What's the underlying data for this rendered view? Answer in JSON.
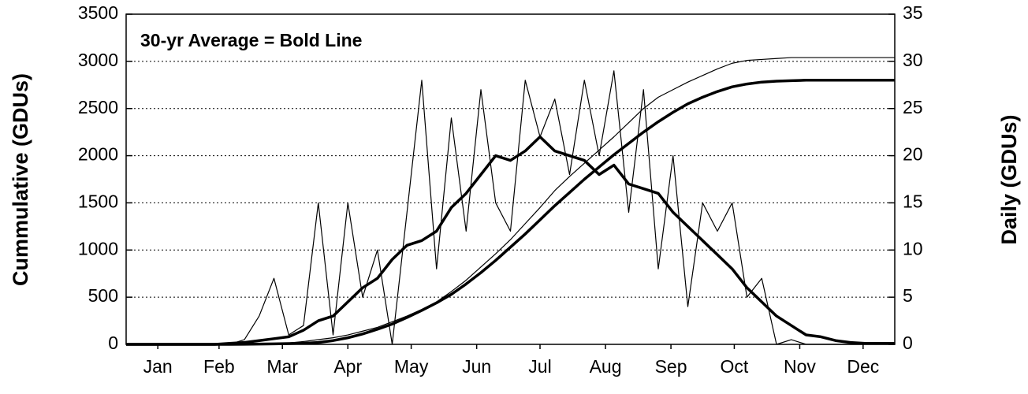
{
  "chart_data": {
    "type": "line",
    "annotation": "30-yr Average = Bold Line",
    "ylabel": "Cummulative (GDUs)",
    "y2label": "Daily (GDUs)",
    "x": [
      1,
      8,
      15,
      22,
      29,
      36,
      43,
      50,
      57,
      64,
      71,
      78,
      85,
      92,
      99,
      106,
      113,
      120,
      127,
      134,
      141,
      148,
      155,
      162,
      169,
      176,
      183,
      190,
      197,
      204,
      211,
      218,
      225,
      232,
      239,
      246,
      253,
      260,
      267,
      274,
      281,
      288,
      295,
      302,
      309,
      316,
      323,
      330,
      337,
      344,
      351,
      358,
      365
    ],
    "xlim": [
      1,
      365
    ],
    "xticks": [
      {
        "value": 16,
        "label": "Jan"
      },
      {
        "value": 45,
        "label": "Feb"
      },
      {
        "value": 75,
        "label": "Mar"
      },
      {
        "value": 106,
        "label": "Apr"
      },
      {
        "value": 136,
        "label": "May"
      },
      {
        "value": 167,
        "label": "Jun"
      },
      {
        "value": 197,
        "label": "Jul"
      },
      {
        "value": 228,
        "label": "Aug"
      },
      {
        "value": 259,
        "label": "Sep"
      },
      {
        "value": 289,
        "label": "Oct"
      },
      {
        "value": 320,
        "label": "Nov"
      },
      {
        "value": 350,
        "label": "Dec"
      }
    ],
    "ylim": [
      0,
      3500
    ],
    "yticks": [
      0,
      500,
      1000,
      1500,
      2000,
      2500,
      3000,
      3500
    ],
    "y2lim": [
      0,
      35
    ],
    "y2ticks": [
      0,
      5,
      10,
      15,
      20,
      25,
      30,
      35
    ],
    "grid": true,
    "series": [
      {
        "color": "#000000",
        "line_width": 1.2,
        "values": [
          0,
          0,
          0,
          0,
          0,
          0,
          0,
          0,
          0,
          2,
          5,
          15,
          30,
          50,
          70,
          100,
          140,
          180,
          240,
          300,
          370,
          450,
          560,
          680,
          820,
          960,
          1110,
          1280,
          1450,
          1630,
          1780,
          1920,
          2060,
          2200,
          2350,
          2500,
          2620,
          2700,
          2780,
          2850,
          2920,
          2980,
          3010,
          3020,
          3030,
          3040,
          3040,
          3040,
          3040,
          3040,
          3040,
          3040,
          3040
        ]
      },
      {
        "color": "#000000",
        "line_width": 3.5,
        "values": [
          0,
          0,
          0,
          0,
          0,
          0,
          0,
          0,
          1,
          3,
          5,
          8,
          12,
          20,
          40,
          70,
          110,
          160,
          215,
          285,
          360,
          440,
          530,
          640,
          760,
          890,
          1030,
          1170,
          1320,
          1470,
          1610,
          1750,
          1880,
          2010,
          2130,
          2250,
          2360,
          2460,
          2550,
          2620,
          2680,
          2730,
          2760,
          2780,
          2790,
          2795,
          2800,
          2800,
          2800,
          2800,
          2800,
          2800,
          2800
        ]
      },
      {
        "color": "#000000",
        "line_width": 1.2,
        "axis": "y2",
        "values": [
          0,
          0,
          0,
          0,
          0,
          0,
          0,
          0,
          0.5,
          3,
          7,
          1,
          2,
          15,
          1,
          15,
          5,
          10,
          0,
          14,
          28,
          8,
          24,
          12,
          27,
          15,
          12,
          28,
          22,
          26,
          18,
          28,
          20,
          29,
          14,
          27,
          8,
          20,
          4,
          15,
          12,
          15,
          5,
          7,
          0,
          0.5,
          0,
          0,
          0,
          0,
          0,
          0,
          0
        ]
      },
      {
        "color": "#000000",
        "line_width": 3.5,
        "axis": "y2",
        "values": [
          0,
          0,
          0,
          0,
          0,
          0,
          0,
          0.1,
          0.2,
          0.4,
          0.6,
          0.8,
          1.5,
          2.5,
          3,
          4.5,
          6,
          7,
          9,
          10.5,
          11,
          12,
          14.5,
          16,
          18,
          20,
          19.5,
          20.5,
          22,
          20.5,
          20,
          19.5,
          18,
          19,
          17,
          16.5,
          16,
          14,
          12.5,
          11,
          9.5,
          8,
          6,
          4.5,
          3,
          2,
          1,
          0.8,
          0.4,
          0.2,
          0.1,
          0.1,
          0.1
        ]
      }
    ]
  }
}
